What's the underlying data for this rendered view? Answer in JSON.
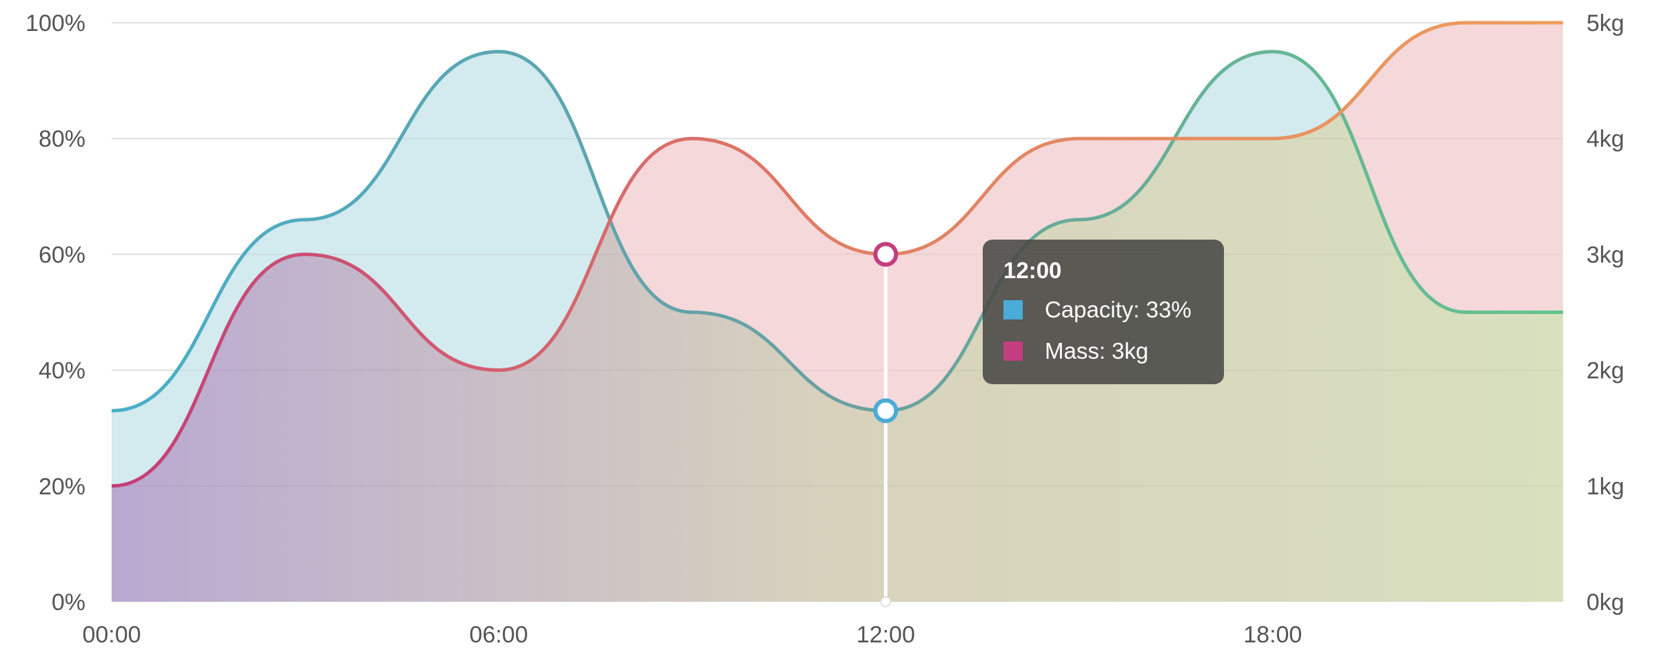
{
  "chart_data": {
    "type": "area",
    "x": [
      "00:00",
      "03:00",
      "06:00",
      "09:00",
      "12:00",
      "15:00",
      "18:00",
      "21:00"
    ],
    "x_ticks": [
      "00:00",
      "06:00",
      "12:00",
      "18:00"
    ],
    "series": [
      {
        "name": "Capacity",
        "axis": "left",
        "unit": "%",
        "values": [
          33,
          66,
          95,
          50,
          33,
          66,
          95,
          50
        ]
      },
      {
        "name": "Mass",
        "axis": "right",
        "unit": "kg",
        "values": [
          1,
          3,
          2,
          4,
          3,
          4,
          4,
          5
        ]
      }
    ],
    "y_left": {
      "ticks": [
        "0%",
        "20%",
        "40%",
        "60%",
        "80%",
        "100%"
      ],
      "range": [
        0,
        100
      ]
    },
    "y_right": {
      "ticks": [
        "0kg",
        "1kg",
        "2kg",
        "3kg",
        "4kg",
        "5kg"
      ],
      "range": [
        0,
        5
      ]
    },
    "colors": {
      "gradient_stops": [
        "#b9a9d1",
        "#d8d2bd",
        "#d8e0be"
      ],
      "capacity_line": [
        "#49afc8",
        "#6aa0a0",
        "#62c48f"
      ],
      "capacity_fill": "#d3eaef",
      "mass_line": [
        "#c43d78",
        "#e07e66",
        "#ee9e5e"
      ],
      "mass_fill": "#f5d8da",
      "grid": "#e8e8e8",
      "capacity_swatch": "#4aabd7",
      "mass_swatch": "#c43d7f"
    },
    "grid": true,
    "tooltip": {
      "title": "12:00",
      "items": [
        {
          "label": "Capacity: 33%",
          "color": "#4aabd7"
        },
        {
          "label": "Mass: 3kg",
          "color": "#c43d7f"
        }
      ]
    },
    "hover_x": "12:00"
  }
}
